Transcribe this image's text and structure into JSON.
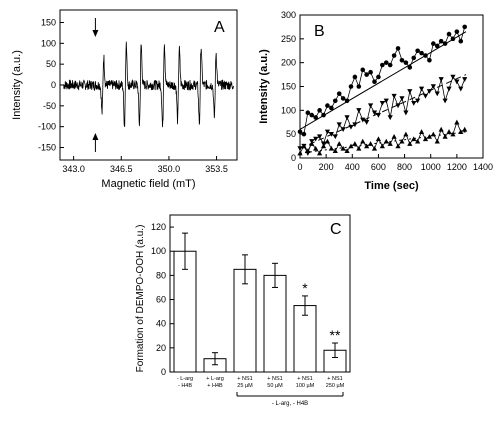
{
  "chart_data": [
    {
      "panel": "A",
      "type": "line",
      "xlabel": "Magnetic field (mT)",
      "ylabel": "Intensity (a.u.)",
      "xlim": [
        342.0,
        355.0
      ],
      "ylim": [
        -180,
        180
      ],
      "xticks": [
        "343.0",
        "346.5",
        "350.0",
        "353.5"
      ],
      "xtick_values": [
        343.0,
        346.5,
        350.0,
        353.5
      ],
      "yticks": [
        "150",
        "100",
        "50",
        "0",
        "-50",
        "-100",
        "-150"
      ],
      "ytick_values": [
        150,
        100,
        50,
        0,
        -50,
        -100,
        -150
      ],
      "baseline_noise_amplitude": 12,
      "spectrum_lines": [
        {
          "center": 345.15,
          "amplitude": 95
        },
        {
          "center": 346.8,
          "amplitude": 140
        },
        {
          "center": 347.9,
          "amplitude": 135
        },
        {
          "center": 349.6,
          "amplitude": 145
        },
        {
          "center": 350.7,
          "amplitude": 120
        },
        {
          "center": 352.3,
          "amplitude": 130
        },
        {
          "center": 353.4,
          "amplitude": 110
        }
      ],
      "arrows": [
        {
          "x": 344.6,
          "direction": "down"
        },
        {
          "x": 344.6,
          "direction": "up"
        }
      ]
    },
    {
      "panel": "B",
      "type": "line",
      "xlabel": "Time (sec)",
      "ylabel": "Intensity (a.u.)",
      "xlim": [
        0,
        1400
      ],
      "ylim": [
        0,
        300
      ],
      "xticks": [
        "0",
        "200",
        "400",
        "600",
        "800",
        "1000",
        "1200",
        "1400"
      ],
      "yticks": [
        "0",
        "50",
        "100",
        "150",
        "200",
        "250",
        "300"
      ],
      "series": [
        {
          "marker": "circle",
          "fit_style": "solid",
          "fit": [
            [
              0,
              60
            ],
            [
              1270,
              265
            ]
          ],
          "x": [
            0,
            30,
            60,
            90,
            120,
            150,
            180,
            210,
            240,
            270,
            300,
            330,
            360,
            390,
            420,
            450,
            480,
            510,
            540,
            570,
            600,
            630,
            660,
            690,
            720,
            750,
            780,
            810,
            840,
            870,
            900,
            930,
            960,
            990,
            1020,
            1050,
            1080,
            1110,
            1140,
            1170,
            1200,
            1230,
            1260
          ],
          "y": [
            55,
            50,
            95,
            90,
            85,
            100,
            90,
            110,
            105,
            120,
            135,
            125,
            120,
            150,
            170,
            150,
            185,
            175,
            180,
            160,
            170,
            195,
            200,
            195,
            215,
            230,
            205,
            200,
            190,
            210,
            225,
            220,
            215,
            205,
            240,
            235,
            245,
            240,
            260,
            250,
            265,
            245,
            275
          ]
        },
        {
          "marker": "triangle-down",
          "fit_style": "dashed",
          "fit": [
            [
              0,
              20
            ],
            [
              1270,
              175
            ]
          ],
          "x": [
            0,
            30,
            60,
            90,
            120,
            150,
            180,
            210,
            240,
            270,
            300,
            330,
            360,
            390,
            420,
            450,
            480,
            510,
            540,
            570,
            600,
            630,
            660,
            690,
            720,
            750,
            780,
            810,
            840,
            870,
            900,
            930,
            960,
            990,
            1020,
            1050,
            1080,
            1110,
            1140,
            1170,
            1200,
            1230,
            1260
          ],
          "y": [
            20,
            25,
            10,
            35,
            40,
            45,
            30,
            55,
            50,
            45,
            70,
            60,
            85,
            65,
            70,
            100,
            80,
            75,
            110,
            95,
            90,
            115,
            120,
            85,
            130,
            110,
            125,
            95,
            140,
            115,
            120,
            145,
            130,
            140,
            150,
            135,
            165,
            120,
            145,
            170,
            160,
            145,
            165
          ]
        },
        {
          "marker": "triangle-up",
          "fit_style": "dotted",
          "fit": [
            [
              0,
              10
            ],
            [
              1270,
              55
            ]
          ],
          "x": [
            0,
            30,
            60,
            90,
            120,
            150,
            180,
            210,
            240,
            270,
            300,
            330,
            360,
            390,
            420,
            450,
            480,
            510,
            540,
            570,
            600,
            630,
            660,
            690,
            720,
            750,
            780,
            810,
            840,
            870,
            900,
            930,
            960,
            990,
            1020,
            1050,
            1080,
            1110,
            1140,
            1170,
            1200,
            1230,
            1260
          ],
          "y": [
            10,
            25,
            15,
            30,
            20,
            10,
            25,
            35,
            20,
            15,
            30,
            20,
            15,
            25,
            30,
            20,
            35,
            25,
            30,
            20,
            40,
            25,
            35,
            30,
            45,
            25,
            35,
            50,
            30,
            40,
            35,
            55,
            40,
            45,
            50,
            35,
            60,
            45,
            55,
            50,
            75,
            55,
            60
          ]
        }
      ]
    },
    {
      "panel": "C",
      "type": "bar",
      "ylabel": "Formation of DEMPO-OOH (a.u.)",
      "ylim": [
        0,
        130
      ],
      "yticks": [
        "0",
        "20",
        "40",
        "60",
        "80",
        "100",
        "120"
      ],
      "ytick_values": [
        0,
        20,
        40,
        60,
        80,
        100,
        120
      ],
      "categories": [
        [
          "- L-arg",
          "- H4B"
        ],
        [
          "+ L-arg",
          "+ H4B"
        ],
        [
          "+ NS1",
          "25 µM"
        ],
        [
          "+ NS1",
          "50 µM"
        ],
        [
          "+ NS1",
          "100 µM"
        ],
        [
          "+ NS1",
          "250 µM"
        ]
      ],
      "values": [
        100,
        11,
        85,
        80,
        55,
        18
      ],
      "errors": [
        15,
        5,
        12,
        10,
        8,
        6
      ],
      "annotations": [
        "",
        "",
        "",
        "",
        "*",
        "**"
      ],
      "group_label": "- L-arg, - H4B",
      "group_span": [
        2,
        5
      ]
    }
  ],
  "panel_letters": [
    "A",
    "B",
    "C"
  ]
}
